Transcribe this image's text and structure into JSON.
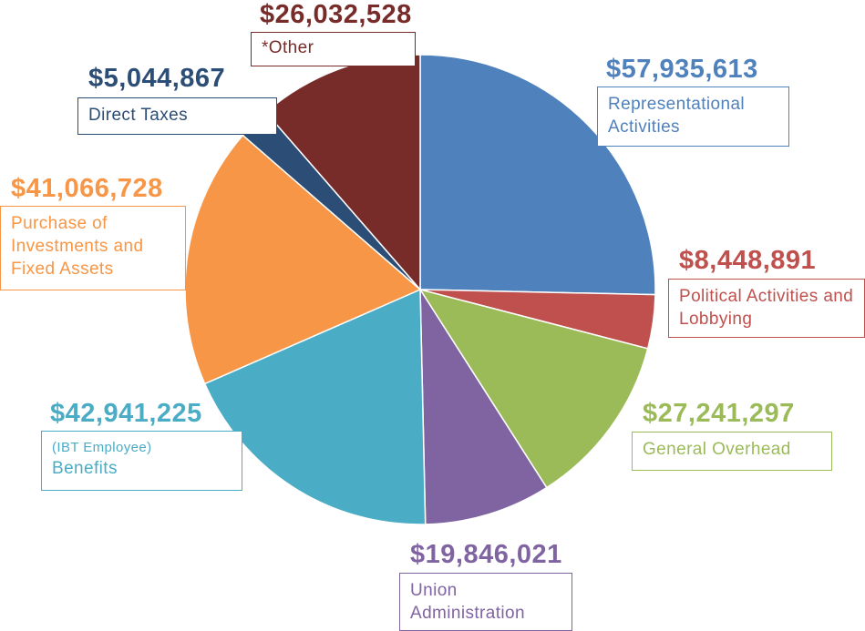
{
  "chart_data": {
    "type": "pie",
    "start_angle": "top, clockwise",
    "slices": [
      {
        "label": "Representational Activities",
        "value": 57935613,
        "value_label": "$57,935,613",
        "color": "#4f81bd"
      },
      {
        "label": "Political Activities and Lobbying",
        "value": 8448891,
        "value_label": "$8,448,891",
        "color": "#c0504d"
      },
      {
        "label": "General Overhead",
        "value": 27241297,
        "value_label": "$27,241,297",
        "color": "#9bbb59"
      },
      {
        "label": "Union Administration",
        "value": 19846021,
        "value_label": "$19,846,021",
        "color": "#8064a2"
      },
      {
        "label": "Benefits",
        "label_prefix": "(IBT Employee)",
        "value": 42941225,
        "value_label": "$42,941,225",
        "color": "#4bacc6"
      },
      {
        "label": "Purchase of Investments and Fixed Assets",
        "value": 41066728,
        "value_label": "$41,066,728",
        "color": "#f79646"
      },
      {
        "label": "Direct Taxes",
        "value": 5044867,
        "value_label": "$5,044,867",
        "color": "#2c4d75"
      },
      {
        "label": "*Other",
        "value": 26032528,
        "value_label": "$26,032,528",
        "color": "#772c2a"
      }
    ]
  }
}
